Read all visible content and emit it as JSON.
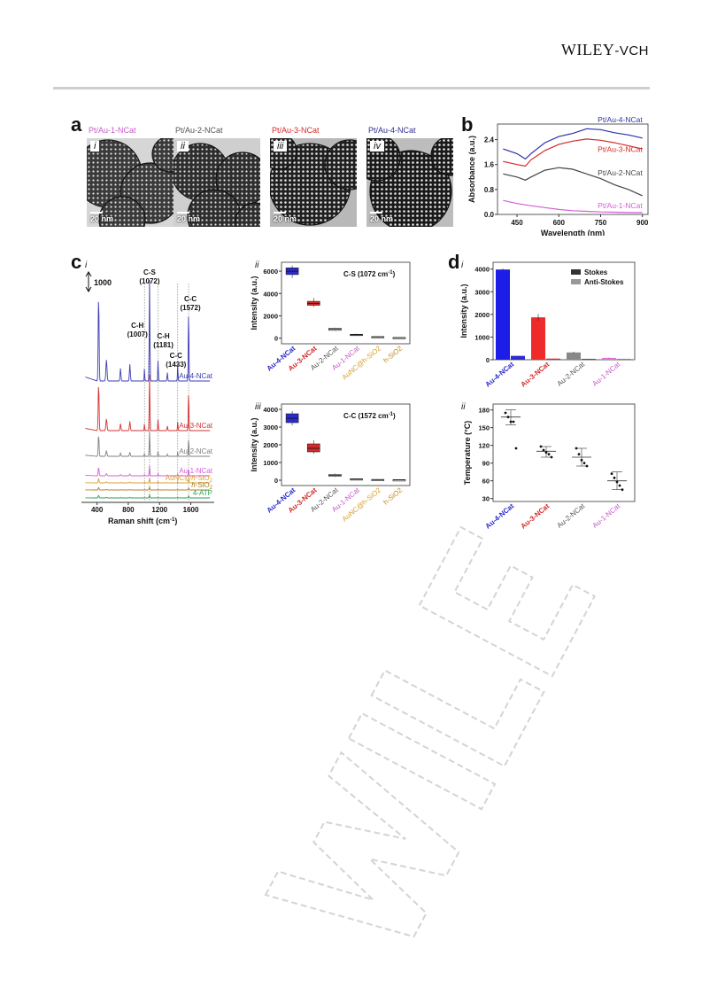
{
  "header": {
    "publisher_main": "WILEY",
    "publisher_sub": "-VCH"
  },
  "panels": {
    "a": {
      "label": "a",
      "images": [
        {
          "roman": "i",
          "caption": "Pt/Au-1-NCat",
          "scale": "20 nm",
          "color": "#c35bc8"
        },
        {
          "roman": "ii",
          "caption": "Pt/Au-2-NCat",
          "scale": "20 nm",
          "color": "#555555"
        },
        {
          "roman": "iii",
          "caption": "Pt/Au-3-NCat",
          "scale": "20 nm",
          "color": "#d42a2a"
        },
        {
          "roman": "iv",
          "caption": "Pt/Au-4-NCat",
          "scale": "20 nm",
          "color": "#2f2f8f"
        }
      ]
    },
    "b": {
      "label": "b"
    },
    "c": {
      "label": "c",
      "sub_i": "i",
      "scale_bar": "1000",
      "peaks": [
        {
          "name": "C-S",
          "pos": "(1072)"
        },
        {
          "name": "C-H",
          "pos": "(1007)"
        },
        {
          "name": "C-H",
          "pos": "(1181)"
        },
        {
          "name": "C-C",
          "pos": "(1433)"
        },
        {
          "name": "C-C",
          "pos": "(1572)"
        }
      ],
      "traces": [
        {
          "name": "Au-4-NCat",
          "color": "#3b3bb3"
        },
        {
          "name": "Au-3-NCat",
          "color": "#d43030"
        },
        {
          "name": "Au-2-NCat",
          "color": "#808080"
        },
        {
          "name": "Au-1-NCat",
          "color": "#d35fd6"
        },
        {
          "name_pre": "AuNC@",
          "name_it": "h",
          "name_post": "-SiO",
          "sub": "2",
          "color": "#d9a030"
        },
        {
          "name_it": "h",
          "name_post": "-SiO",
          "sub": "2",
          "color": "#b08020"
        },
        {
          "name": "4-ATP",
          "color": "#2fa050"
        }
      ],
      "xlabel_pre": "Raman shift (cm",
      "xlabel_sup": "-1",
      "xlabel_post": ")",
      "xticks": [
        "400",
        "800",
        "1200",
        "1600"
      ]
    },
    "d": {
      "label": "d"
    }
  },
  "chart_data": [
    {
      "id": "b",
      "type": "line",
      "xlabel": "Wavelength (nm)",
      "ylabel": "Absorbance (a.u.)",
      "xlim": [
        380,
        920
      ],
      "ylim": [
        0,
        2.9
      ],
      "xticks": [
        450,
        600,
        750,
        900
      ],
      "yticks": [
        0.0,
        0.8,
        1.6,
        2.4
      ],
      "ytick_labels": [
        "0.0",
        "0.8",
        "1.6",
        "2.4"
      ],
      "series": [
        {
          "name": "Pt/Au-4-NCat",
          "color": "#2f2fa8",
          "x": [
            400,
            450,
            480,
            500,
            550,
            600,
            650,
            700,
            750,
            800,
            850,
            900
          ],
          "y": [
            2.1,
            1.95,
            1.78,
            1.95,
            2.3,
            2.5,
            2.6,
            2.75,
            2.72,
            2.62,
            2.55,
            2.45
          ]
        },
        {
          "name": "Pt/Au-3-NCat",
          "color": "#d42a2a",
          "x": [
            400,
            450,
            480,
            500,
            550,
            600,
            650,
            700,
            750,
            800,
            850,
            900
          ],
          "y": [
            1.7,
            1.6,
            1.55,
            1.75,
            2.05,
            2.25,
            2.35,
            2.42,
            2.38,
            2.3,
            2.2,
            2.1
          ]
        },
        {
          "name": "Pt/Au-2-NCat",
          "color": "#444444",
          "x": [
            400,
            450,
            480,
            500,
            550,
            600,
            650,
            700,
            750,
            800,
            850,
            900
          ],
          "y": [
            1.3,
            1.2,
            1.1,
            1.2,
            1.42,
            1.5,
            1.45,
            1.3,
            1.15,
            0.95,
            0.8,
            0.6
          ]
        },
        {
          "name": "Pt/Au-1-NCat",
          "color": "#d35fd6",
          "x": [
            400,
            450,
            500,
            550,
            600,
            650,
            700,
            750,
            800,
            850,
            900
          ],
          "y": [
            0.45,
            0.35,
            0.28,
            0.22,
            0.16,
            0.12,
            0.1,
            0.08,
            0.07,
            0.06,
            0.06
          ]
        }
      ]
    },
    {
      "id": "c-ii",
      "type": "box",
      "sub": "ii",
      "title_pre": "C-S (1072 cm",
      "title_sup": "-1",
      "title_post": ")",
      "ylabel": "Intensity (a.u.)",
      "ylim": [
        -500,
        6800
      ],
      "yticks": [
        0,
        2000,
        4000,
        6000
      ],
      "categories": [
        "Au-4-NCat",
        "Au-3-NCat",
        "Au-2-NCat",
        "Au-1-NCat",
        "AuNC@h-SiO2",
        "h-SiO2"
      ],
      "category_colors": [
        "#2b2bd0",
        "#d42a2a",
        "#555555",
        "#c35bc8",
        "#d9a030",
        "#c08a20"
      ],
      "values": [
        6000,
        3100,
        800,
        300,
        120,
        50
      ],
      "q1": [
        5700,
        2950,
        700,
        250,
        90,
        30
      ],
      "q3": [
        6300,
        3300,
        900,
        350,
        150,
        70
      ],
      "min": [
        5400,
        2800,
        650,
        200,
        60,
        10
      ],
      "max": [
        6500,
        3600,
        950,
        400,
        180,
        90
      ]
    },
    {
      "id": "c-iii",
      "type": "box",
      "sub": "iii",
      "title_pre": "C-C (1572 cm",
      "title_sup": "-1",
      "title_post": ")",
      "ylabel": "Intensity (a.u.)",
      "ylim": [
        -300,
        4300
      ],
      "yticks": [
        0,
        1000,
        2000,
        3000,
        4000
      ],
      "categories": [
        "Au-4-NCat",
        "Au-3-NCat",
        "Au-2-NCat",
        "Au-1-NCat",
        "AuNC@h-SiO2",
        "h-SiO2"
      ],
      "category_colors": [
        "#2b2bd0",
        "#d42a2a",
        "#555555",
        "#c35bc8",
        "#d9a030",
        "#c08a20"
      ],
      "values": [
        3500,
        1800,
        280,
        60,
        30,
        20
      ],
      "q1": [
        3250,
        1600,
        220,
        40,
        15,
        10
      ],
      "q3": [
        3750,
        2050,
        330,
        80,
        45,
        30
      ],
      "min": [
        3100,
        1500,
        180,
        20,
        5,
        0
      ],
      "max": [
        3900,
        2250,
        380,
        100,
        60,
        40
      ]
    },
    {
      "id": "d-i",
      "type": "bar",
      "sub": "i",
      "ylabel": "Intensity (a.u.)",
      "ylim": [
        0,
        4300
      ],
      "yticks": [
        0,
        1000,
        2000,
        3000,
        4000
      ],
      "categories": [
        "Au-4-NCat",
        "Au-3-NCat",
        "Au-2-NCat",
        "Au-1-NCat"
      ],
      "category_colors": [
        "#2b2bd0",
        "#d42a2a",
        "#555555",
        "#c35bc8"
      ],
      "series": [
        {
          "name": "Stokes",
          "colors": [
            "#1d1de8",
            "#ee2a2a",
            "#888888",
            "#e070e0"
          ],
          "values": [
            3980,
            1870,
            320,
            80
          ],
          "err": [
            40,
            150,
            30,
            15
          ]
        },
        {
          "name": "Anti-Stokes",
          "colors": [
            "#2b2bd0",
            "#d42a2a",
            "#555555",
            "#c35bc8"
          ],
          "values": [
            170,
            50,
            40,
            40
          ],
          "err": [
            10,
            5,
            5,
            5
          ]
        }
      ],
      "legend": "top-right"
    },
    {
      "id": "d-ii",
      "type": "scatter",
      "sub": "ii",
      "ylabel": "Temperature (°C)",
      "ylim": [
        25,
        190
      ],
      "yticks": [
        30,
        60,
        90,
        120,
        150,
        180
      ],
      "categories": [
        "Au-4-NCat",
        "Au-3-NCat",
        "Au-2-NCat",
        "Au-1-NCat"
      ],
      "category_colors": [
        "#2b2bd0",
        "#d42a2a",
        "#555555",
        "#c35bc8"
      ],
      "points": [
        [
          175,
          168,
          160,
          160,
          115
        ],
        [
          118,
          112,
          108,
          105,
          100
        ],
        [
          115,
          105,
          95,
          90,
          85
        ],
        [
          72,
          65,
          58,
          52,
          45
        ]
      ],
      "mean": [
        168,
        110,
        100,
        60
      ],
      "err_low": [
        155,
        100,
        85,
        45
      ],
      "err_high": [
        180,
        118,
        115,
        75
      ]
    }
  ]
}
